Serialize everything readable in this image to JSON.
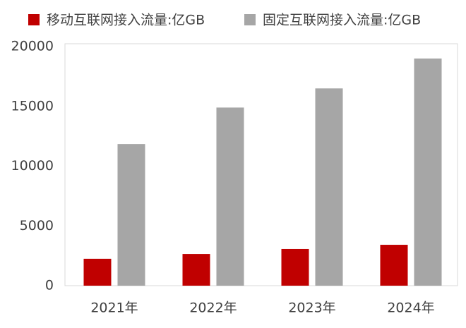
{
  "chart_data": {
    "type": "bar",
    "categories": [
      "2021年",
      "2022年",
      "2023年",
      "2024年"
    ],
    "series": [
      {
        "name": "移动互联网接入流量:亿GB",
        "color": "#c00000",
        "values": [
          2250,
          2650,
          3070,
          3420
        ]
      },
      {
        "name": "固定互联网接入流量:亿GB",
        "color": "#a6a6a6",
        "values": [
          11850,
          14900,
          16500,
          19000
        ]
      }
    ],
    "ylim": [
      0,
      20000
    ],
    "yticks": [
      0,
      5000,
      10000,
      15000,
      20000
    ],
    "grid": false,
    "legend": "top"
  }
}
